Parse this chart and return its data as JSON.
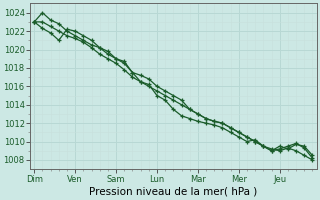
{
  "background_color": "#cce8e4",
  "plot_bg_color": "#cce8e4",
  "grid_color": "#aad4ce",
  "line_color": "#1a5c2a",
  "x_labels": [
    "Dim",
    "Ven",
    "Sam",
    "Lun",
    "Mar",
    "Mer",
    "Jeu"
  ],
  "xlabel": "Pression niveau de la mer( hPa )",
  "ylim": [
    1007.0,
    1025.0
  ],
  "yticks": [
    1008,
    1010,
    1012,
    1014,
    1016,
    1018,
    1020,
    1022,
    1024
  ],
  "series1": [
    1023.0,
    1024.0,
    1023.2,
    1022.8,
    1022.0,
    1021.5,
    1021.0,
    1020.5,
    1020.2,
    1019.8,
    1019.0,
    1018.5,
    1017.5,
    1017.2,
    1016.8,
    1016.0,
    1015.5,
    1015.0,
    1014.5,
    1013.5,
    1013.0,
    1012.5,
    1012.2,
    1012.0,
    1011.5,
    1011.0,
    1010.5,
    1010.0,
    1009.5,
    1009.0,
    1009.2,
    1009.5,
    1009.8,
    1009.3,
    1008.2
  ],
  "series2": [
    1023.0,
    1022.3,
    1021.8,
    1021.0,
    1022.2,
    1022.0,
    1021.5,
    1021.0,
    1020.2,
    1019.5,
    1019.0,
    1018.7,
    1017.5,
    1016.5,
    1016.2,
    1015.0,
    1014.5,
    1013.5,
    1012.8,
    1012.5,
    1012.2,
    1012.0,
    1011.8,
    1011.5,
    1011.0,
    1010.5,
    1010.0,
    1010.2,
    1009.5,
    1009.0,
    1009.5,
    1009.2,
    1009.7,
    1009.5,
    1008.5
  ],
  "series3": [
    1023.0,
    1023.0,
    1022.5,
    1022.0,
    1021.5,
    1021.2,
    1020.8,
    1020.2,
    1019.5,
    1019.0,
    1018.5,
    1017.8,
    1017.0,
    1016.5,
    1016.0,
    1015.5,
    1015.0,
    1014.5,
    1014.0,
    1013.5,
    1013.0,
    1012.5,
    1012.2,
    1012.0,
    1011.5,
    1011.0,
    1010.5,
    1010.0,
    1009.5,
    1009.2,
    1009.0,
    1009.3,
    1009.0,
    1008.5,
    1008.0
  ],
  "n_points": 35,
  "x_tick_positions": [
    0,
    5,
    10,
    15,
    20,
    25,
    30
  ],
  "label_fontsize": 6,
  "xlabel_fontsize": 7.5
}
